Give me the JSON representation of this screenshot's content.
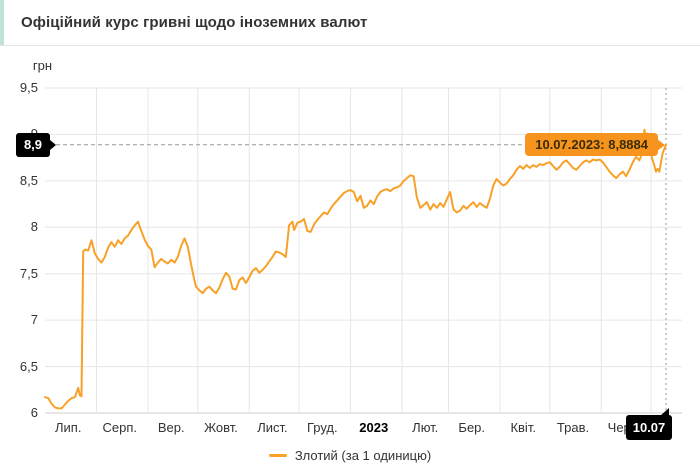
{
  "title": "Офіційний курс гривні щодо іноземних валют",
  "colors": {
    "accent_left": "#bfe3d6",
    "line": "#f7a128",
    "tooltip_bg": "#f7941d",
    "grid": "#e6e6e6",
    "axis_line": "#cccccc",
    "crosshair": "#999999",
    "badge_bg": "#000000",
    "badge_text": "#ffffff",
    "tick_text": "#333333"
  },
  "y_axis": {
    "unit": "грн",
    "ticks": [
      {
        "v": 9.5,
        "label": "9,5"
      },
      {
        "v": 9,
        "label": "9"
      },
      {
        "v": 8.5,
        "label": "8,5"
      },
      {
        "v": 8,
        "label": "8"
      },
      {
        "v": 7.5,
        "label": "7,5"
      },
      {
        "v": 7,
        "label": "7"
      },
      {
        "v": 6.5,
        "label": "6,5"
      },
      {
        "v": 6,
        "label": "6"
      }
    ]
  },
  "x_axis": {
    "months": [
      {
        "label": "Лип.",
        "bold": false
      },
      {
        "label": "Серп.",
        "bold": false
      },
      {
        "label": "Вер.",
        "bold": false
      },
      {
        "label": "Жовт.",
        "bold": false
      },
      {
        "label": "Лист.",
        "bold": false
      },
      {
        "label": "Груд.",
        "bold": false
      },
      {
        "label": "2023",
        "bold": true
      },
      {
        "label": "Лют.",
        "bold": false
      },
      {
        "label": "Бер.",
        "bold": false
      },
      {
        "label": "Квіт.",
        "bold": false
      },
      {
        "label": "Трав.",
        "bold": false
      },
      {
        "label": "Черв.",
        "bold": false
      }
    ]
  },
  "crosshair": {
    "value_label": "8,9",
    "date_label": "10.07"
  },
  "tooltip": {
    "text": "10.07.2023: 8,8884"
  },
  "legend": {
    "label": "Злотий (за 1 одиницю)"
  },
  "chart_data": {
    "type": "line",
    "title": "Офіційний курс гривні щодо іноземних валют",
    "ylabel": "грн",
    "ylim": [
      6,
      9.5
    ],
    "yticks": [
      6,
      6.5,
      7,
      7.5,
      8,
      8.5,
      9,
      9.5
    ],
    "x_range": [
      "2022-07-01",
      "2023-07-10"
    ],
    "grid": true,
    "legend_position": "bottom",
    "last_point": {
      "date": "10.07.2023",
      "value": 8.8884
    },
    "series": [
      {
        "name": "Злотий (за 1 одиницю)",
        "points": [
          [
            "2022-07-01",
            6.17
          ],
          [
            "2022-07-03",
            6.16
          ],
          [
            "2022-07-05",
            6.1
          ],
          [
            "2022-07-07",
            6.06
          ],
          [
            "2022-07-09",
            6.05
          ],
          [
            "2022-07-11",
            6.05
          ],
          [
            "2022-07-13",
            6.09
          ],
          [
            "2022-07-15",
            6.13
          ],
          [
            "2022-07-17",
            6.16
          ],
          [
            "2022-07-19",
            6.17
          ],
          [
            "2022-07-21",
            6.27
          ],
          [
            "2022-07-22",
            6.19
          ],
          [
            "2022-07-23",
            6.18
          ],
          [
            "2022-07-24",
            7.74
          ],
          [
            "2022-07-25",
            7.76
          ],
          [
            "2022-07-27",
            7.75
          ],
          [
            "2022-07-29",
            7.86
          ],
          [
            "2022-07-31",
            7.72
          ],
          [
            "2022-08-02",
            7.66
          ],
          [
            "2022-08-04",
            7.62
          ],
          [
            "2022-08-06",
            7.68
          ],
          [
            "2022-08-08",
            7.78
          ],
          [
            "2022-08-10",
            7.84
          ],
          [
            "2022-08-12",
            7.79
          ],
          [
            "2022-08-14",
            7.86
          ],
          [
            "2022-08-16",
            7.82
          ],
          [
            "2022-08-18",
            7.88
          ],
          [
            "2022-08-20",
            7.91
          ],
          [
            "2022-08-22",
            7.97
          ],
          [
            "2022-08-24",
            8.02
          ],
          [
            "2022-08-26",
            8.06
          ],
          [
            "2022-08-28",
            7.96
          ],
          [
            "2022-08-30",
            7.87
          ],
          [
            "2022-09-01",
            7.8
          ],
          [
            "2022-09-03",
            7.76
          ],
          [
            "2022-09-05",
            7.57
          ],
          [
            "2022-09-07",
            7.62
          ],
          [
            "2022-09-09",
            7.66
          ],
          [
            "2022-09-11",
            7.63
          ],
          [
            "2022-09-13",
            7.61
          ],
          [
            "2022-09-15",
            7.65
          ],
          [
            "2022-09-17",
            7.62
          ],
          [
            "2022-09-19",
            7.68
          ],
          [
            "2022-09-21",
            7.8
          ],
          [
            "2022-09-23",
            7.88
          ],
          [
            "2022-09-25",
            7.79
          ],
          [
            "2022-09-27",
            7.6
          ],
          [
            "2022-09-29",
            7.43
          ],
          [
            "2022-09-30",
            7.36
          ],
          [
            "2022-10-02",
            7.32
          ],
          [
            "2022-10-04",
            7.29
          ],
          [
            "2022-10-06",
            7.34
          ],
          [
            "2022-10-08",
            7.36
          ],
          [
            "2022-10-10",
            7.32
          ],
          [
            "2022-10-12",
            7.29
          ],
          [
            "2022-10-14",
            7.35
          ],
          [
            "2022-10-16",
            7.44
          ],
          [
            "2022-10-18",
            7.51
          ],
          [
            "2022-10-20",
            7.47
          ],
          [
            "2022-10-22",
            7.34
          ],
          [
            "2022-10-24",
            7.33
          ],
          [
            "2022-10-26",
            7.43
          ],
          [
            "2022-10-28",
            7.46
          ],
          [
            "2022-10-30",
            7.4
          ],
          [
            "2022-11-01",
            7.46
          ],
          [
            "2022-11-03",
            7.53
          ],
          [
            "2022-11-05",
            7.56
          ],
          [
            "2022-11-07",
            7.51
          ],
          [
            "2022-11-09",
            7.54
          ],
          [
            "2022-11-11",
            7.58
          ],
          [
            "2022-11-13",
            7.63
          ],
          [
            "2022-11-15",
            7.68
          ],
          [
            "2022-11-17",
            7.74
          ],
          [
            "2022-11-19",
            7.73
          ],
          [
            "2022-11-21",
            7.71
          ],
          [
            "2022-11-23",
            7.68
          ],
          [
            "2022-11-25",
            8.02
          ],
          [
            "2022-11-27",
            8.06
          ],
          [
            "2022-11-28",
            7.97
          ],
          [
            "2022-11-30",
            8.05
          ],
          [
            "2022-12-02",
            8.06
          ],
          [
            "2022-12-04",
            8.09
          ],
          [
            "2022-12-06",
            7.96
          ],
          [
            "2022-12-08",
            7.95
          ],
          [
            "2022-12-10",
            8.03
          ],
          [
            "2022-12-12",
            8.08
          ],
          [
            "2022-12-14",
            8.12
          ],
          [
            "2022-12-16",
            8.16
          ],
          [
            "2022-12-18",
            8.14
          ],
          [
            "2022-12-20",
            8.2
          ],
          [
            "2022-12-22",
            8.25
          ],
          [
            "2022-12-24",
            8.29
          ],
          [
            "2022-12-26",
            8.33
          ],
          [
            "2022-12-28",
            8.37
          ],
          [
            "2022-12-30",
            8.39
          ],
          [
            "2023-01-01",
            8.4
          ],
          [
            "2023-01-03",
            8.38
          ],
          [
            "2023-01-05",
            8.28
          ],
          [
            "2023-01-07",
            8.34
          ],
          [
            "2023-01-09",
            8.21
          ],
          [
            "2023-01-11",
            8.23
          ],
          [
            "2023-01-13",
            8.29
          ],
          [
            "2023-01-15",
            8.25
          ],
          [
            "2023-01-17",
            8.33
          ],
          [
            "2023-01-19",
            8.38
          ],
          [
            "2023-01-21",
            8.4
          ],
          [
            "2023-01-23",
            8.41
          ],
          [
            "2023-01-25",
            8.39
          ],
          [
            "2023-01-27",
            8.42
          ],
          [
            "2023-01-29",
            8.43
          ],
          [
            "2023-01-31",
            8.45
          ],
          [
            "2023-02-02",
            8.5
          ],
          [
            "2023-02-04",
            8.53
          ],
          [
            "2023-02-06",
            8.56
          ],
          [
            "2023-02-08",
            8.55
          ],
          [
            "2023-02-10",
            8.32
          ],
          [
            "2023-02-12",
            8.21
          ],
          [
            "2023-02-14",
            8.24
          ],
          [
            "2023-02-16",
            8.27
          ],
          [
            "2023-02-18",
            8.19
          ],
          [
            "2023-02-20",
            8.25
          ],
          [
            "2023-02-22",
            8.21
          ],
          [
            "2023-02-24",
            8.26
          ],
          [
            "2023-02-26",
            8.22
          ],
          [
            "2023-02-28",
            8.3
          ],
          [
            "2023-03-02",
            8.38
          ],
          [
            "2023-03-04",
            8.19
          ],
          [
            "2023-03-06",
            8.16
          ],
          [
            "2023-03-08",
            8.18
          ],
          [
            "2023-03-10",
            8.23
          ],
          [
            "2023-03-12",
            8.2
          ],
          [
            "2023-03-14",
            8.24
          ],
          [
            "2023-03-16",
            8.27
          ],
          [
            "2023-03-18",
            8.22
          ],
          [
            "2023-03-20",
            8.26
          ],
          [
            "2023-03-22",
            8.23
          ],
          [
            "2023-03-24",
            8.21
          ],
          [
            "2023-03-26",
            8.31
          ],
          [
            "2023-03-28",
            8.45
          ],
          [
            "2023-03-30",
            8.52
          ],
          [
            "2023-04-01",
            8.48
          ],
          [
            "2023-04-03",
            8.45
          ],
          [
            "2023-04-05",
            8.47
          ],
          [
            "2023-04-07",
            8.52
          ],
          [
            "2023-04-09",
            8.56
          ],
          [
            "2023-04-11",
            8.62
          ],
          [
            "2023-04-13",
            8.66
          ],
          [
            "2023-04-15",
            8.63
          ],
          [
            "2023-04-17",
            8.67
          ],
          [
            "2023-04-19",
            8.64
          ],
          [
            "2023-04-21",
            8.67
          ],
          [
            "2023-04-23",
            8.65
          ],
          [
            "2023-04-25",
            8.68
          ],
          [
            "2023-04-27",
            8.67
          ],
          [
            "2023-04-29",
            8.69
          ],
          [
            "2023-05-01",
            8.7
          ],
          [
            "2023-05-03",
            8.66
          ],
          [
            "2023-05-05",
            8.62
          ],
          [
            "2023-05-07",
            8.65
          ],
          [
            "2023-05-09",
            8.7
          ],
          [
            "2023-05-11",
            8.72
          ],
          [
            "2023-05-13",
            8.68
          ],
          [
            "2023-05-15",
            8.64
          ],
          [
            "2023-05-17",
            8.62
          ],
          [
            "2023-05-19",
            8.66
          ],
          [
            "2023-05-21",
            8.7
          ],
          [
            "2023-05-23",
            8.72
          ],
          [
            "2023-05-25",
            8.7
          ],
          [
            "2023-05-27",
            8.73
          ],
          [
            "2023-05-29",
            8.72
          ],
          [
            "2023-05-31",
            8.73
          ],
          [
            "2023-06-02",
            8.7
          ],
          [
            "2023-06-04",
            8.65
          ],
          [
            "2023-06-06",
            8.6
          ],
          [
            "2023-06-08",
            8.56
          ],
          [
            "2023-06-10",
            8.53
          ],
          [
            "2023-06-12",
            8.57
          ],
          [
            "2023-06-14",
            8.6
          ],
          [
            "2023-06-16",
            8.55
          ],
          [
            "2023-06-18",
            8.62
          ],
          [
            "2023-06-20",
            8.7
          ],
          [
            "2023-06-22",
            8.76
          ],
          [
            "2023-06-24",
            8.72
          ],
          [
            "2023-06-26",
            8.82
          ],
          [
            "2023-06-27",
            9.05
          ],
          [
            "2023-06-28",
            8.97
          ],
          [
            "2023-06-29",
            9.01
          ],
          [
            "2023-06-30",
            8.86
          ],
          [
            "2023-07-01",
            8.78
          ],
          [
            "2023-07-03",
            8.66
          ],
          [
            "2023-07-04",
            8.6
          ],
          [
            "2023-07-05",
            8.63
          ],
          [
            "2023-07-06",
            8.6
          ],
          [
            "2023-07-07",
            8.7
          ],
          [
            "2023-07-08",
            8.8
          ],
          [
            "2023-07-10",
            8.8884
          ]
        ]
      }
    ]
  }
}
